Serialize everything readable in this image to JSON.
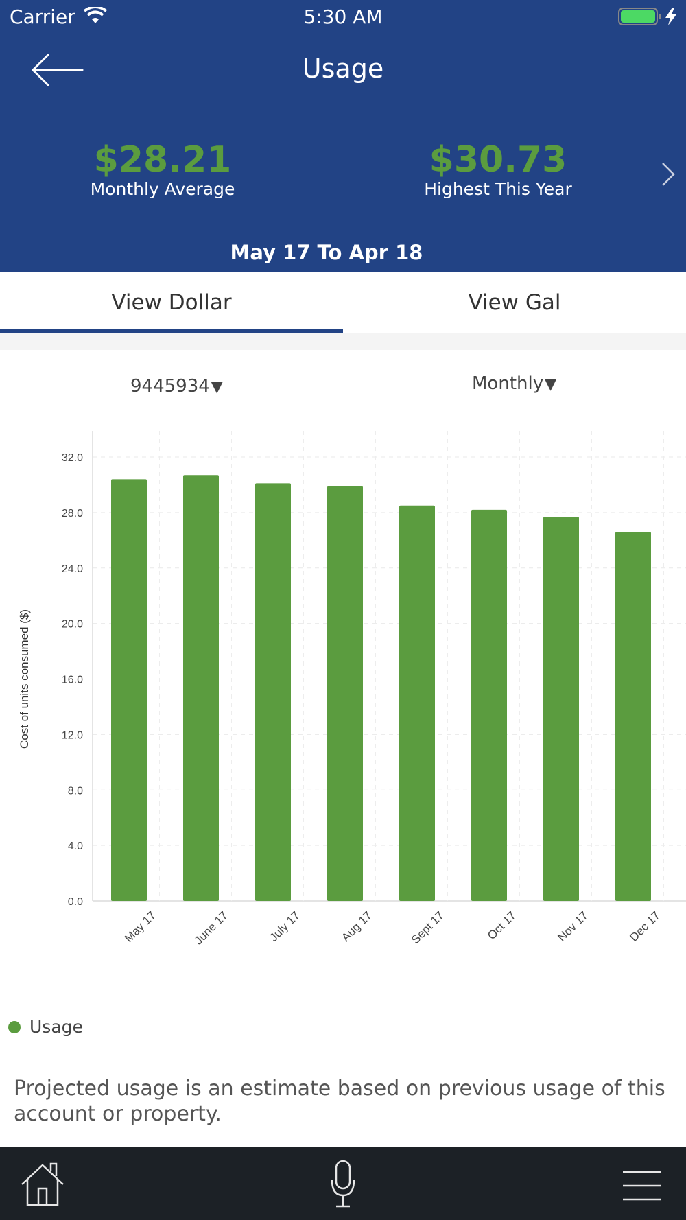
{
  "status_bar": {
    "carrier": "Carrier",
    "time": "5:30 AM"
  },
  "header": {
    "title": "Usage",
    "monthly_average_value": "$28.21",
    "monthly_average_label": "Monthly Average",
    "highest_value": "$30.73",
    "highest_label": "Highest This Year",
    "date_range": "May 17 To Apr 18"
  },
  "tabs": [
    {
      "label": "View Dollar",
      "selected": true
    },
    {
      "label": "View Gal",
      "selected": false
    }
  ],
  "selectors": {
    "account": "9445934",
    "period": "Monthly"
  },
  "colors": {
    "header_bg": "#224385",
    "accent_green": "#5b9c3f",
    "tabbar_bg": "#1c2126"
  },
  "chart_data": {
    "type": "bar",
    "categories": [
      "May 17",
      "June 17",
      "July 17",
      "Aug 17",
      "Sept 17",
      "Oct 17",
      "Nov 17",
      "Dec 17"
    ],
    "series": [
      {
        "name": "Usage",
        "values": [
          30.4,
          30.7,
          30.1,
          29.9,
          28.5,
          28.2,
          27.7,
          26.6
        ]
      }
    ],
    "ylabel": "Cost of units consumed ($)",
    "ylim": [
      0,
      32
    ],
    "yticks": [
      "0.0",
      "4.0",
      "8.0",
      "12.0",
      "16.0",
      "20.0",
      "24.0",
      "28.0",
      "32.0"
    ],
    "grid": true,
    "legend_position": "bottom-left"
  },
  "legend": {
    "label": "Usage"
  },
  "note": "Projected usage is an estimate based on previous usage of this account or property.",
  "icons": {
    "back": "arrow-left-icon",
    "next": "chevron-right-icon",
    "home": "home-icon",
    "mic": "microphone-icon",
    "menu": "hamburger-menu-icon"
  }
}
